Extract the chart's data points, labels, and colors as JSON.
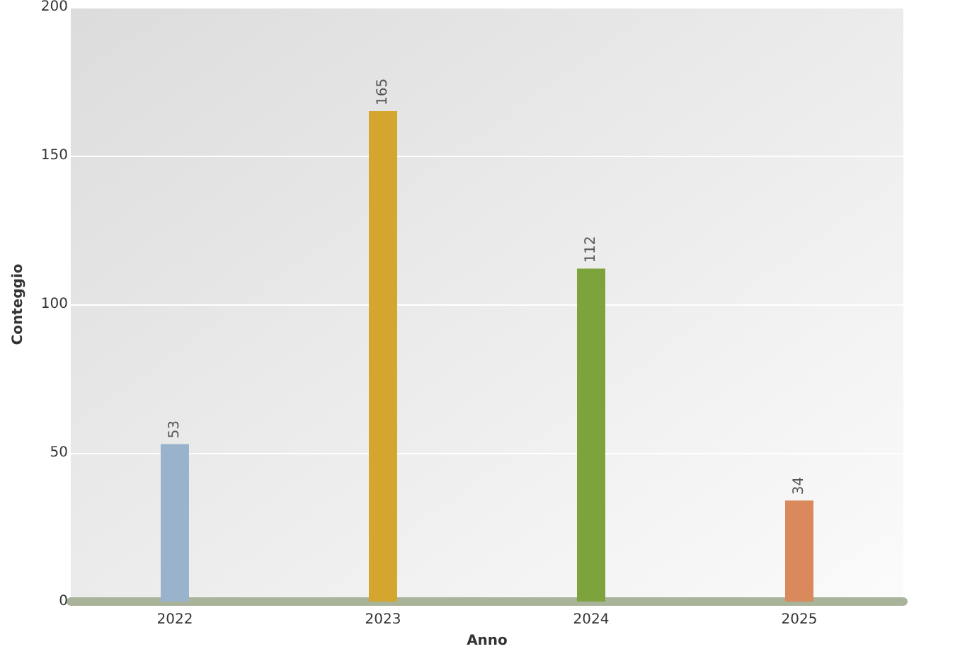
{
  "chart_data": {
    "type": "bar",
    "xlabel": "Anno",
    "ylabel": "Conteggio",
    "categories": [
      "2022",
      "2023",
      "2024",
      "2025"
    ],
    "values": [
      53,
      165,
      112,
      34
    ],
    "colors": [
      "#9ab3cc",
      "#d4a62e",
      "#7da33c",
      "#d9895c"
    ],
    "ylim": [
      0,
      200
    ],
    "yticks": [
      0,
      50,
      100,
      150,
      200
    ],
    "grid": "y",
    "data_labels": true
  }
}
